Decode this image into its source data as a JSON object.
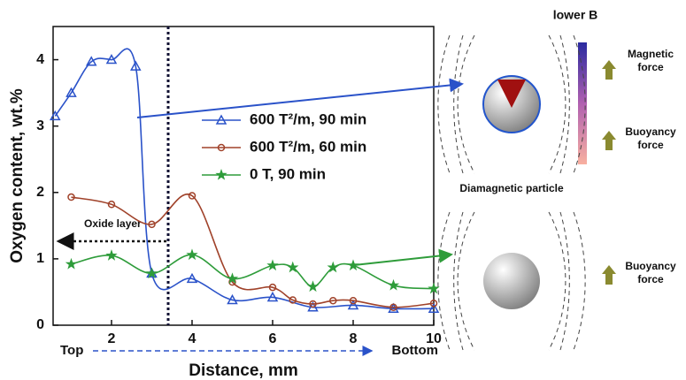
{
  "chart_data": {
    "type": "line",
    "x_label": "Distance, mm",
    "y_label": "Oxygen content, wt.%",
    "xlim": [
      0.55,
      10
    ],
    "ylim": [
      0,
      4.5
    ],
    "xticks": [
      2,
      4,
      6,
      8,
      10
    ],
    "yticks": [
      0,
      1,
      2,
      3,
      4
    ],
    "series": [
      {
        "name": "600 T²/m, 90 min",
        "color": "#2a52c9",
        "marker": "triangle",
        "x": [
          0.6,
          1,
          1.5,
          2,
          2.6,
          3,
          4,
          5,
          6,
          7,
          8,
          9,
          10
        ],
        "values": [
          3.15,
          3.5,
          3.97,
          4.0,
          3.9,
          0.78,
          0.7,
          0.38,
          0.42,
          0.27,
          0.3,
          0.25,
          0.25
        ]
      },
      {
        "name": "600 T²/m, 60 min",
        "color": "#a0422a",
        "marker": "circle",
        "x": [
          1,
          2,
          3,
          4,
          5,
          6,
          6.5,
          7,
          7.5,
          8,
          9,
          10
        ],
        "values": [
          1.93,
          1.82,
          1.52,
          1.95,
          0.65,
          0.57,
          0.38,
          0.32,
          0.37,
          0.37,
          0.27,
          0.33
        ]
      },
      {
        "name": "0 T, 90 min",
        "color": "#2e9c3a",
        "marker": "star",
        "x": [
          1,
          2,
          3,
          4,
          5,
          6,
          6.5,
          7,
          7.5,
          8,
          9,
          10
        ],
        "values": [
          0.92,
          1.05,
          0.78,
          1.06,
          0.7,
          0.9,
          0.87,
          0.58,
          0.87,
          0.9,
          0.6,
          0.55
        ]
      }
    ],
    "annotations": {
      "oxide": "Oxide layer",
      "top": "Top",
      "bottom": "Bottom"
    }
  },
  "diagram": {
    "field": "lower B",
    "magnetic_force": [
      "Magnetic",
      "force"
    ],
    "buoyancy_force_1": [
      "Buoyancy",
      "force"
    ],
    "particle": "Diamagnetic particle",
    "buoyancy_force_2": [
      "Buoyancy",
      "force"
    ]
  }
}
